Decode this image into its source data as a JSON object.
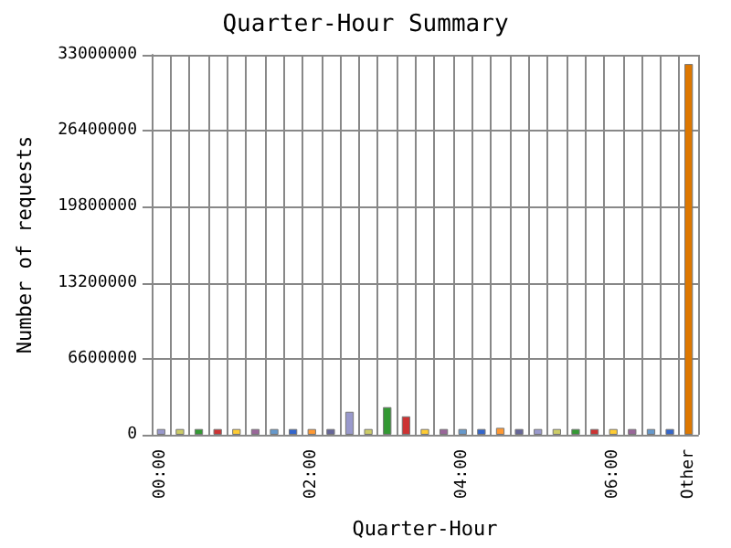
{
  "chart_data": {
    "type": "bar",
    "title": "Quarter-Hour Summary",
    "xlabel": "Quarter-Hour",
    "ylabel": "Number of requests",
    "categories": [
      "00:00",
      null,
      null,
      null,
      null,
      null,
      null,
      null,
      "02:00",
      null,
      null,
      null,
      null,
      null,
      null,
      null,
      "04:00",
      null,
      null,
      null,
      null,
      null,
      null,
      null,
      "06:00",
      null,
      null,
      null,
      "Other"
    ],
    "values": [
      500000,
      500000,
      500000,
      500000,
      500000,
      500000,
      500000,
      500000,
      500000,
      500000,
      2000000,
      500000,
      2400000,
      1600000,
      500000,
      500000,
      500000,
      500000,
      600000,
      500000,
      500000,
      500000,
      500000,
      500000,
      500000,
      500000,
      500000,
      500000,
      32200000
    ],
    "colors": [
      "#9999cc",
      "#cccc66",
      "#339933",
      "#cc3333",
      "#ffcc33",
      "#996699",
      "#6699cc",
      "#3366cc",
      "#ff9933",
      "#666699",
      "#9999cc",
      "#cccc66",
      "#339933",
      "#cc3333",
      "#ffcc33",
      "#996699",
      "#6699cc",
      "#3366cc",
      "#ff9933",
      "#666699",
      "#9999cc",
      "#cccc66",
      "#339933",
      "#cc3333",
      "#ffcc33",
      "#996699",
      "#6699cc",
      "#3366cc",
      "#dd7700"
    ],
    "ylim": [
      0,
      33000000
    ],
    "yticks": [
      0,
      6600000,
      13200000,
      19800000,
      26400000,
      33000000
    ],
    "grid": true
  }
}
